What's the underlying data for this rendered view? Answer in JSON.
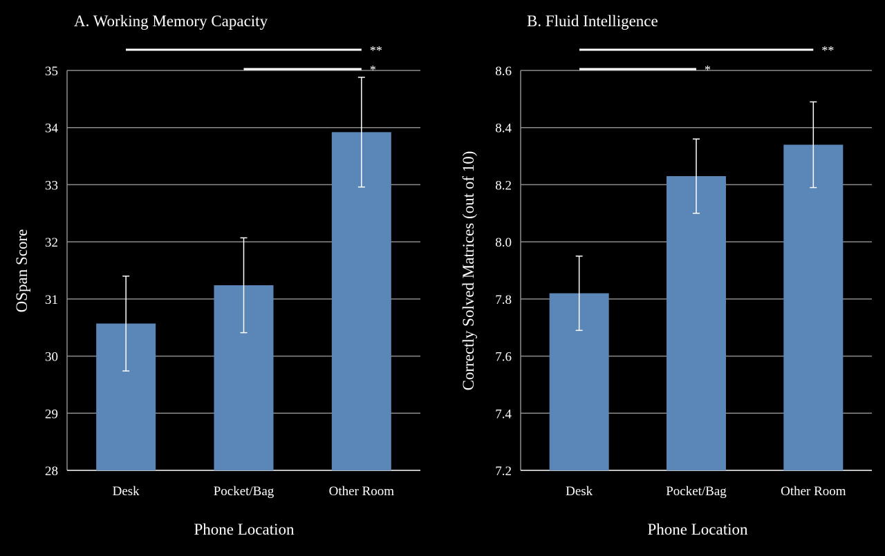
{
  "colors": {
    "background": "#000000",
    "bar": "#5b87b8",
    "grid": "#8c8c8c",
    "text": "#ffffff"
  },
  "chart_data": [
    {
      "type": "bar",
      "title": "A. Working Memory Capacity",
      "xlabel": "Phone Location",
      "ylabel": "OSpan Score",
      "categories": [
        "Desk",
        "Pocket/Bag",
        "Other Room"
      ],
      "values": [
        30.57,
        31.24,
        33.92
      ],
      "error": [
        0.83,
        0.83,
        0.96
      ],
      "ylim": [
        28,
        35
      ],
      "yticks": [
        "28",
        "29",
        "30",
        "31",
        "32",
        "33",
        "34",
        "35"
      ],
      "grid": true,
      "significance": [
        {
          "from": 0,
          "to": 2,
          "label": "**"
        },
        {
          "from": 1,
          "to": 2,
          "label": "*"
        }
      ]
    },
    {
      "type": "bar",
      "title": "B. Fluid Intelligence",
      "xlabel": "Phone Location",
      "ylabel": "Correctly Solved Matrices (out of 10)",
      "categories": [
        "Desk",
        "Pocket/Bag",
        "Other Room"
      ],
      "values": [
        7.82,
        8.23,
        8.34
      ],
      "error": [
        0.13,
        0.13,
        0.15
      ],
      "ylim": [
        7.2,
        8.6
      ],
      "yticks": [
        "7.2",
        "7.4",
        "7.6",
        "7.8",
        "8.0",
        "8.2",
        "8.4",
        "8.6"
      ],
      "grid": true,
      "significance": [
        {
          "from": 0,
          "to": 2,
          "label": "**"
        },
        {
          "from": 0,
          "to": 1,
          "label": "*"
        }
      ]
    }
  ]
}
